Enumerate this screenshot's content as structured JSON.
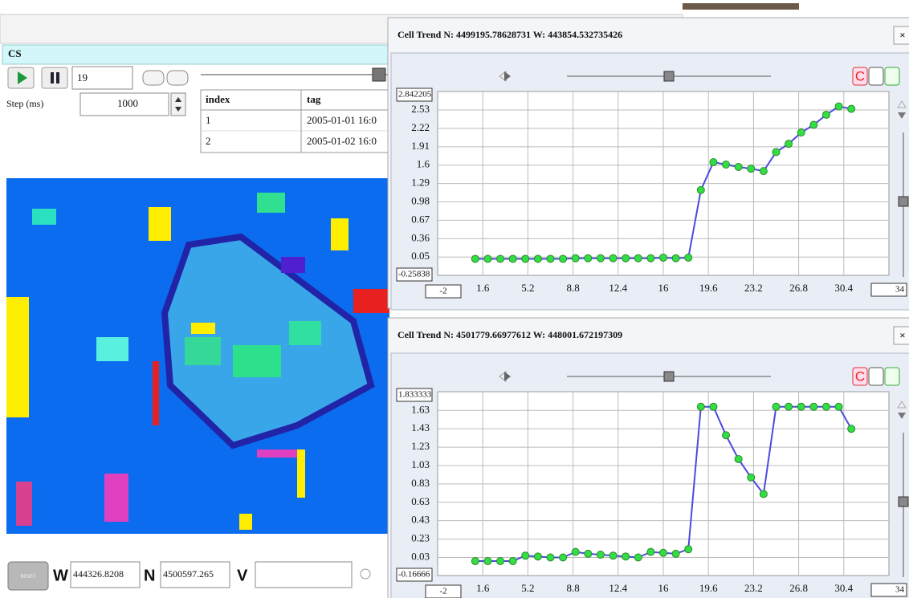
{
  "app": {
    "title": "CS",
    "frame_input": "19",
    "step_label": "Step (ms)",
    "step_input": "1000",
    "table": {
      "columns": [
        "index",
        "tag"
      ],
      "rows": [
        [
          "1",
          "2005-01-01 16:0"
        ],
        [
          "2",
          "2005-01-02 16:0"
        ]
      ]
    },
    "reset": "RESET",
    "w_label": "W",
    "w_input": "444326.8208",
    "n_label": "N",
    "n_input": "4500597.265",
    "v_label": "V"
  },
  "windows": [
    {
      "title": "Cell Trend N: 4499195.78628731 W: 443854.532735426",
      "close": "×",
      "button": "C",
      "chart_data": {
        "type": "line",
        "color": "#4a4ae0",
        "marker_color": "#33dd44",
        "grid": true,
        "x": [
          1,
          2,
          3,
          4,
          5,
          6,
          7,
          8,
          9,
          10,
          11,
          12,
          13,
          14,
          15,
          16,
          17,
          18,
          19,
          20,
          21,
          22,
          23,
          24,
          25,
          26,
          27,
          28,
          29,
          30,
          31
        ],
        "values": [
          0.02,
          0.02,
          0.02,
          0.02,
          0.02,
          0.02,
          0.02,
          0.02,
          0.03,
          0.03,
          0.03,
          0.03,
          0.03,
          0.03,
          0.03,
          0.04,
          0.03,
          0.04,
          1.18,
          1.65,
          1.61,
          1.57,
          1.54,
          1.5,
          1.82,
          1.96,
          2.15,
          2.28,
          2.45,
          2.59,
          2.55
        ],
        "xlim": [
          -2,
          34
        ],
        "ylim": [
          -0.25838,
          2.842205
        ],
        "xticks": [
          1.6,
          5.2,
          8.8,
          12.4,
          16,
          19.6,
          23.2,
          26.8,
          30.4
        ],
        "yticks": [
          0.05,
          0.36,
          0.67,
          0.98,
          1.29,
          1.6,
          1.91,
          2.22,
          2.53
        ]
      }
    },
    {
      "title": "Cell Trend N: 4501779.66977612 W: 448001.672197309",
      "close": "×",
      "button": "C",
      "chart_data": {
        "type": "line",
        "color": "#4a4ae0",
        "marker_color": "#33dd44",
        "grid": true,
        "x": [
          1,
          2,
          3,
          4,
          5,
          6,
          7,
          8,
          9,
          10,
          11,
          12,
          13,
          14,
          15,
          16,
          17,
          18,
          19,
          20,
          21,
          22,
          23,
          24,
          25,
          26,
          27,
          28,
          29,
          30,
          31
        ],
        "values": [
          -0.01,
          -0.01,
          -0.01,
          -0.01,
          0.05,
          0.04,
          0.03,
          0.03,
          0.09,
          0.07,
          0.06,
          0.05,
          0.04,
          0.03,
          0.09,
          0.08,
          0.07,
          0.12,
          1.67,
          1.67,
          1.36,
          1.1,
          0.9,
          0.72,
          1.67,
          1.67,
          1.67,
          1.67,
          1.67,
          1.67,
          1.43
        ],
        "xlim": [
          -2,
          34
        ],
        "ylim": [
          -0.16666,
          1.833333
        ],
        "xticks": [
          1.6,
          5.2,
          8.8,
          12.4,
          16,
          19.6,
          23.2,
          26.8,
          30.4
        ],
        "yticks": [
          0.03,
          0.23,
          0.43,
          0.63,
          0.83,
          1.03,
          1.23,
          1.43,
          1.63
        ]
      }
    }
  ]
}
